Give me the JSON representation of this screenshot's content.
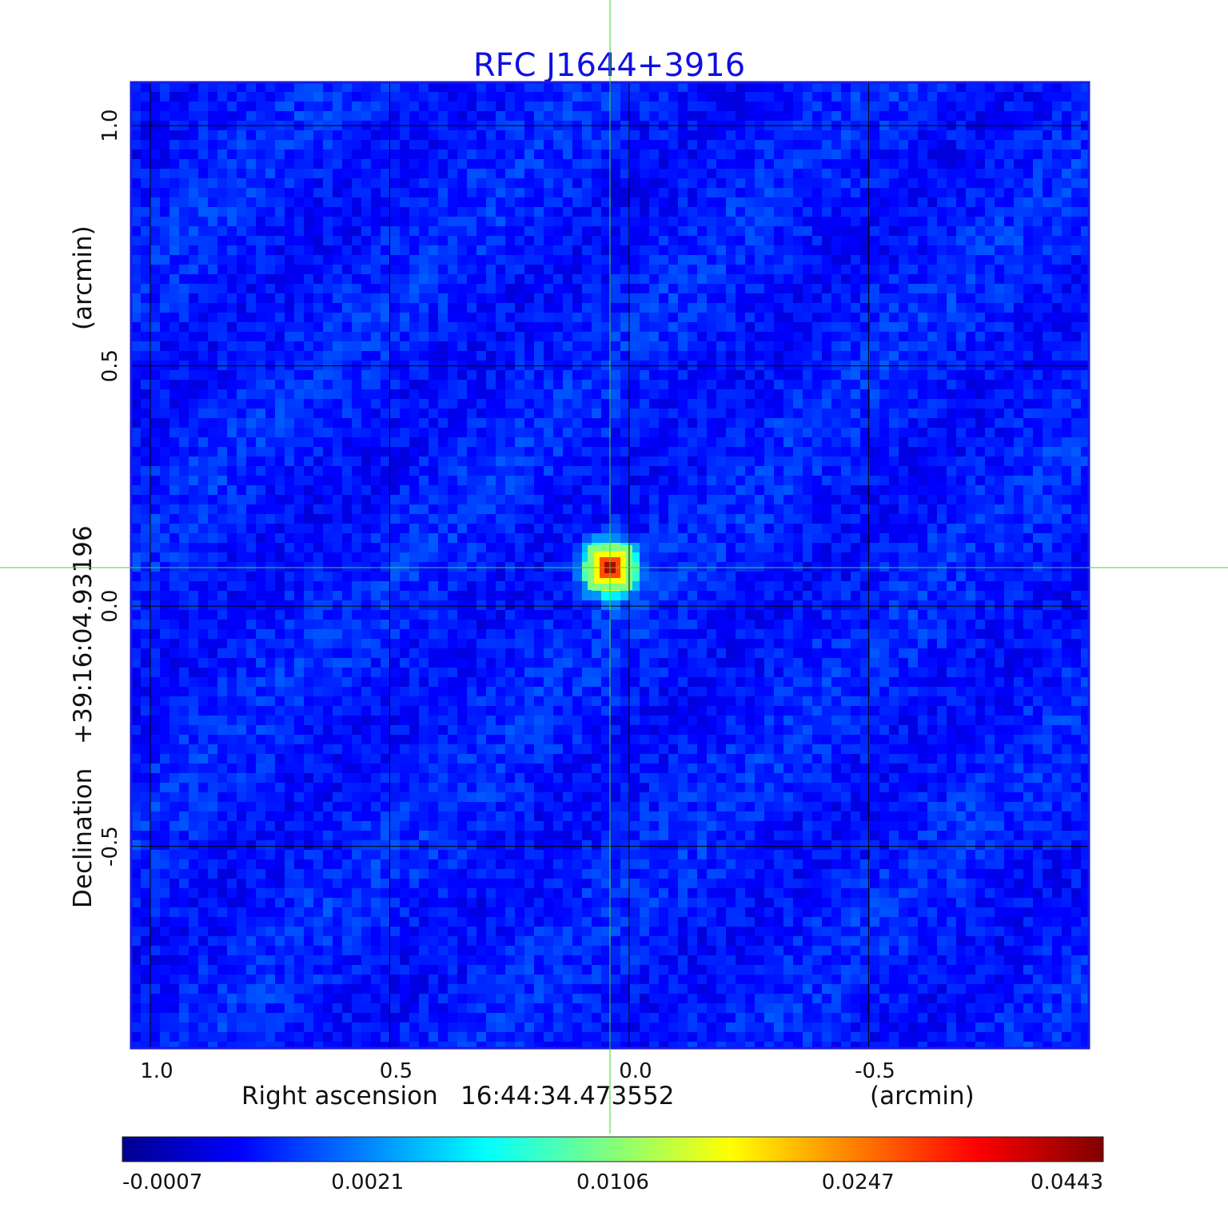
{
  "chart_data": {
    "type": "heatmap",
    "title": "RFC J1644+3916",
    "xlabel": "Right ascension",
    "xlabel_value": "16:44:34.473552",
    "xlabel_unit": "(arcmin)",
    "ylabel": "Declination",
    "ylabel_value": "+39:16:04.93196",
    "ylabel_unit": "(arcmin)",
    "x_ticks": [
      "1.0",
      "0.5",
      "0.0",
      "-0.5"
    ],
    "x_tick_values": [
      1.0,
      0.5,
      0.0,
      -0.5
    ],
    "y_ticks": [
      "1.0",
      "0.5",
      "0.0",
      "-0.5"
    ],
    "y_tick_values": [
      1.0,
      0.5,
      0.0,
      -0.5
    ],
    "xlim": [
      1.04,
      -0.96
    ],
    "ylim": [
      -0.92,
      1.09
    ],
    "grid": true,
    "crosshair": {
      "x": 0.04,
      "y": 0.08,
      "color": "#33dd33"
    },
    "source": {
      "x": 0.04,
      "y": 0.08,
      "peak": 0.0443
    },
    "background_level": -0.0002,
    "colorbar": {
      "ticks": [
        "-0.0007",
        "0.0021",
        "0.0106",
        "0.0247",
        "0.0443"
      ],
      "colormap": [
        "#00008f",
        "#0000ff",
        "#00ffff",
        "#ffff00",
        "#ff0000",
        "#800000"
      ]
    },
    "colors": {
      "title": "#1010e0",
      "frame": "#1a1ae0",
      "grid": "#000000"
    }
  }
}
